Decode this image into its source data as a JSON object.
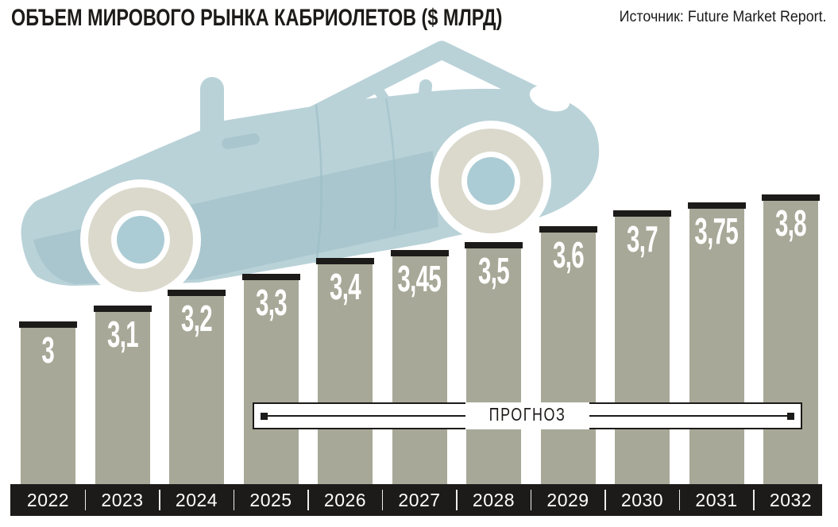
{
  "header": {
    "title": "ОБЪЕМ МИРОВОГО РЫНКА КАБРИОЛЕТОВ ($ МЛРД)",
    "source": "Источник: Future Market Report."
  },
  "chart_data": {
    "type": "bar",
    "title": "ОБЪЕМ МИРОВОГО РЫНКА КАБРИОЛЕТОВ ($ МЛРД)",
    "unit": "$ млрд",
    "categories": [
      "2022",
      "2023",
      "2024",
      "2025",
      "2026",
      "2027",
      "2028",
      "2029",
      "2030",
      "2031",
      "2032"
    ],
    "values": [
      3,
      3.1,
      3.2,
      3.3,
      3.4,
      3.45,
      3.5,
      3.6,
      3.7,
      3.75,
      3.8
    ],
    "value_labels": [
      "3",
      "3,1",
      "3,2",
      "3,3",
      "3,4",
      "3,45",
      "3,5",
      "3,6",
      "3,7",
      "3,75",
      "3,8"
    ],
    "forecast_label": "ПРОГНОЗ",
    "forecast_range": {
      "from": "2025",
      "to": "2032"
    },
    "xlabel": "",
    "ylabel": "",
    "grid": false,
    "value_axis_visible": false,
    "legend": "none",
    "bar_label_position": "inside-top"
  },
  "colors": {
    "bar": "#a7a897",
    "ink": "#1d1b19",
    "bar_label": "#ffffff",
    "year_label": "#ffffff",
    "car_body": "#b9d2d8",
    "car_shade": "#a9c6ce",
    "wheel_tire": "#dbd9cc",
    "wheel_hub": "#abccd5",
    "background": "#ffffff"
  },
  "illustration": {
    "name": "convertible-car",
    "description": "light blue convertible sports car tilted upward over the rising bars"
  }
}
